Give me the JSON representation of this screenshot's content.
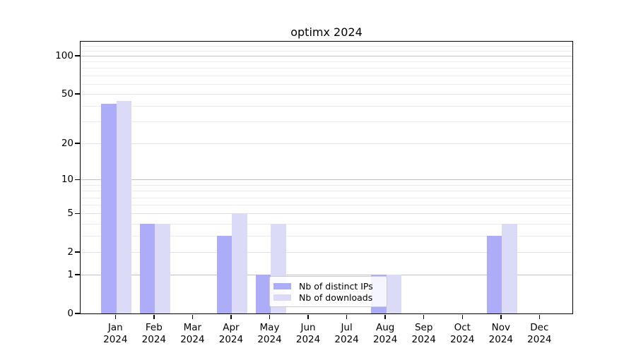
{
  "title": "optimx 2024",
  "chart_data": {
    "type": "bar",
    "title": "optimx 2024",
    "scale": "log10(1+x)",
    "ylim": [
      0,
      128
    ],
    "grid": true,
    "legend_position": "bottom-center-inside",
    "categories": [
      {
        "month": "Jan",
        "year": "2024"
      },
      {
        "month": "Feb",
        "year": "2024"
      },
      {
        "month": "Mar",
        "year": "2024"
      },
      {
        "month": "Apr",
        "year": "2024"
      },
      {
        "month": "May",
        "year": "2024"
      },
      {
        "month": "Jun",
        "year": "2024"
      },
      {
        "month": "Jul",
        "year": "2024"
      },
      {
        "month": "Aug",
        "year": "2024"
      },
      {
        "month": "Sep",
        "year": "2024"
      },
      {
        "month": "Oct",
        "year": "2024"
      },
      {
        "month": "Nov",
        "year": "2024"
      },
      {
        "month": "Dec",
        "year": "2024"
      }
    ],
    "series": [
      {
        "name": "Nb of distinct IPs",
        "color": "#ACACF8",
        "values": [
          42,
          4,
          0,
          3,
          1,
          0,
          0,
          1,
          0,
          0,
          3,
          0
        ]
      },
      {
        "name": "Nb of downloads",
        "color": "#DBDBF8",
        "values": [
          44,
          4,
          0,
          5,
          4,
          0,
          0,
          1,
          0,
          0,
          4,
          0
        ]
      }
    ],
    "y_ticks": [
      0,
      1,
      2,
      5,
      10,
      20,
      50,
      100
    ],
    "y_minor_ticks": [
      3,
      4,
      6,
      7,
      8,
      9,
      30,
      40,
      60,
      70,
      80,
      90,
      110,
      120
    ],
    "y_strong_gridlines": [
      1,
      10,
      100
    ]
  }
}
